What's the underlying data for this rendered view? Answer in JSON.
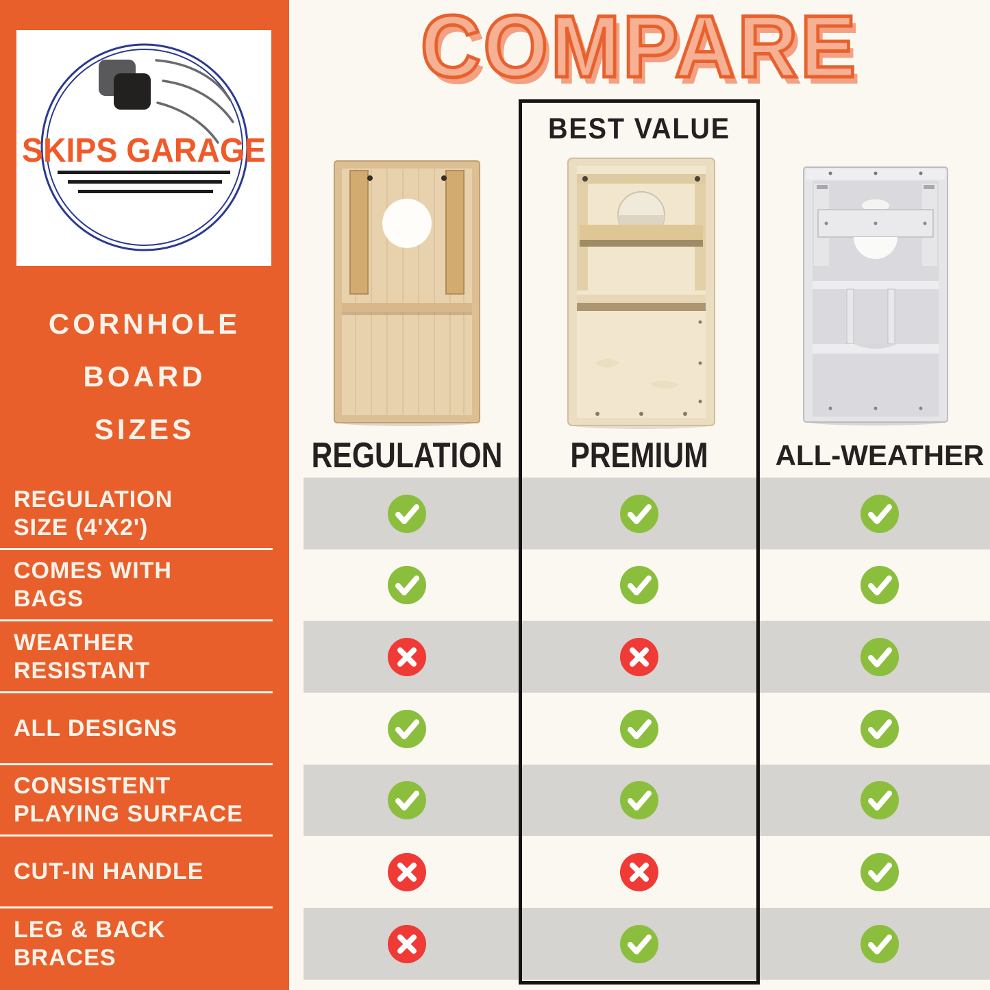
{
  "colors": {
    "orange": "#E85F2C",
    "cream": "#FBF8F1",
    "band_gray": "#D5D4D1",
    "green": "#8CBE3E",
    "red": "#F03A36",
    "navy": "#2B3A8F",
    "ink": "#262020",
    "sidebar_text": "#F8F3EA",
    "title_fill": "#F6B093",
    "title_stroke": "#E8612D",
    "title_shadow": "#F2A284"
  },
  "brand": {
    "logo_text": "SKIPS GARAGE"
  },
  "sidebar": {
    "title_lines": [
      "CORNHOLE",
      "BOARD",
      "SIZES"
    ]
  },
  "main": {
    "title": "COMPARE",
    "best_value_label": "BEST VALUE"
  },
  "columns": [
    "REGULATION",
    "PREMIUM",
    "ALL-WEATHER"
  ],
  "features": [
    {
      "label": "REGULATION SIZE (4'X2')",
      "lines": [
        "REGULATION",
        "SIZE (4'X2')"
      ],
      "marks": [
        "check",
        "check",
        "check"
      ]
    },
    {
      "label": "COMES WITH BAGS",
      "lines": [
        "COMES WITH",
        "BAGS"
      ],
      "marks": [
        "check",
        "check",
        "check"
      ]
    },
    {
      "label": "WEATHER RESISTANT",
      "lines": [
        "WEATHER",
        "RESISTANT"
      ],
      "marks": [
        "cross",
        "cross",
        "check"
      ]
    },
    {
      "label": "ALL DESIGNS",
      "lines": [
        "ALL DESIGNS"
      ],
      "marks": [
        "check",
        "check",
        "check"
      ]
    },
    {
      "label": "CONSISTENT PLAYING SURFACE",
      "lines": [
        "CONSISTENT",
        "PLAYING SURFACE"
      ],
      "marks": [
        "check",
        "check",
        "check"
      ]
    },
    {
      "label": "CUT-IN HANDLE",
      "lines": [
        "CUT-IN HANDLE"
      ],
      "marks": [
        "cross",
        "cross",
        "check"
      ]
    },
    {
      "label": "LEG & BACK BRACES",
      "lines": [
        "LEG & BACK",
        "BRACES"
      ],
      "marks": [
        "cross",
        "check",
        "check"
      ]
    }
  ],
  "chart_data": {
    "type": "table",
    "title": "COMPARE",
    "columns": [
      "REGULATION",
      "PREMIUM",
      "ALL-WEATHER"
    ],
    "rows": [
      {
        "feature": "REGULATION SIZE (4'X2')",
        "REGULATION": true,
        "PREMIUM": true,
        "ALL-WEATHER": true
      },
      {
        "feature": "COMES WITH BAGS",
        "REGULATION": true,
        "PREMIUM": true,
        "ALL-WEATHER": true
      },
      {
        "feature": "WEATHER RESISTANT",
        "REGULATION": false,
        "PREMIUM": false,
        "ALL-WEATHER": true
      },
      {
        "feature": "ALL DESIGNS",
        "REGULATION": true,
        "PREMIUM": true,
        "ALL-WEATHER": true
      },
      {
        "feature": "CONSISTENT PLAYING SURFACE",
        "REGULATION": true,
        "PREMIUM": true,
        "ALL-WEATHER": true
      },
      {
        "feature": "CUT-IN HANDLE",
        "REGULATION": false,
        "PREMIUM": false,
        "ALL-WEATHER": true
      },
      {
        "feature": "LEG & BACK BRACES",
        "REGULATION": false,
        "PREMIUM": true,
        "ALL-WEATHER": true
      }
    ],
    "highlight": {
      "column": "PREMIUM",
      "label": "BEST VALUE"
    },
    "legend": {
      "check": "feature included",
      "cross": "feature not included"
    }
  }
}
